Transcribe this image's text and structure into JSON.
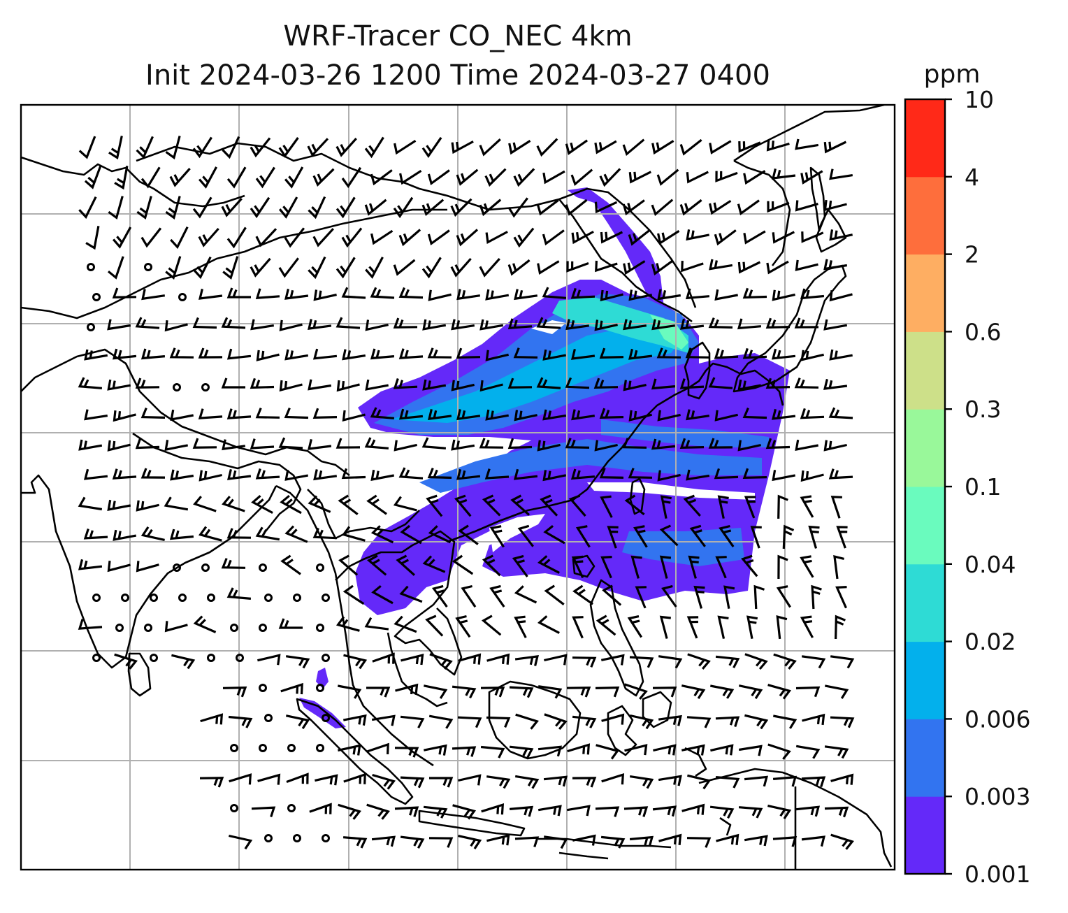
{
  "title_line1": "WRF-Tracer CO_NEC 4km",
  "title_line2": "Init 2024-03-26 1200 Time 2024-03-27 0400",
  "colorbar": {
    "unit_label": "ppm",
    "levels": [
      "0.001",
      "0.003",
      "0.006",
      "0.02",
      "0.04",
      "0.1",
      "0.3",
      "0.6",
      "2",
      "4",
      "10"
    ],
    "colors": [
      "#6429f9",
      "#3274f0",
      "#03b0ec",
      "#2edbd5",
      "#6afbbe",
      "#99f89a",
      "#cde089",
      "#feae62",
      "#fe6e3c",
      "#ff2918"
    ]
  },
  "map": {
    "gridlines": "on",
    "grid_color": "#b0b0b0",
    "coastline_color": "#000000",
    "field": "CO_NEC tracer concentration (shaded) with wind barbs"
  }
}
